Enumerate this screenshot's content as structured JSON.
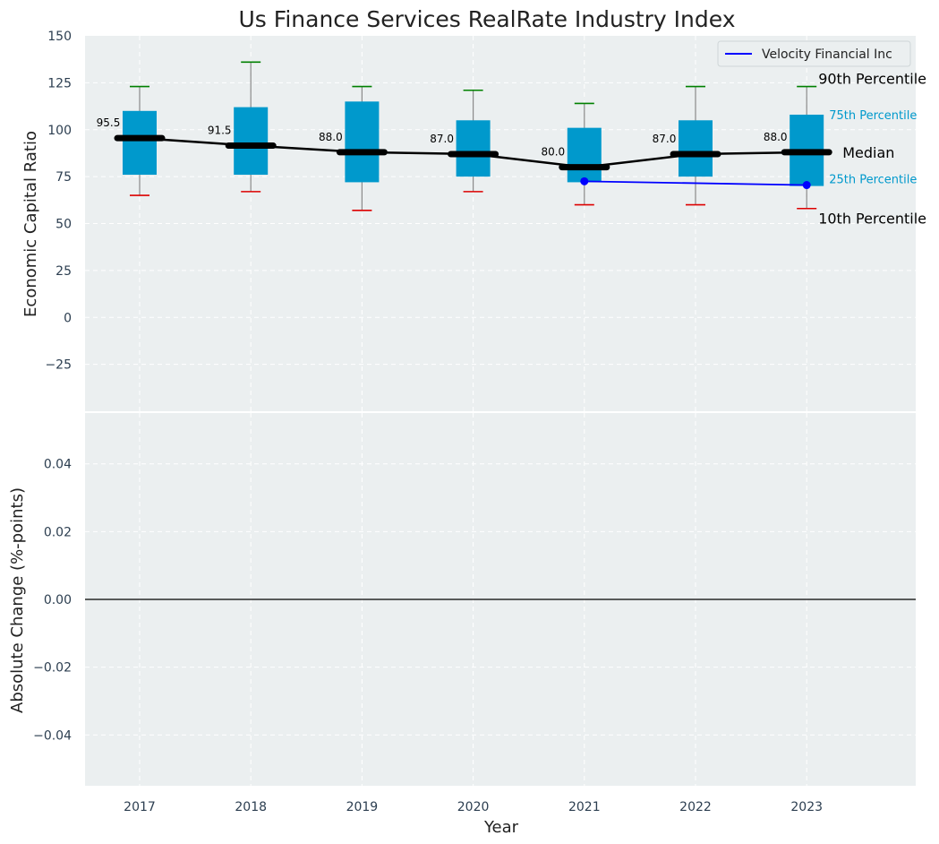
{
  "chart_data": {
    "type": "box",
    "title": "Us Finance Services RealRate Industry Index",
    "xlabel": "Year",
    "ylabel_top": "Economic Capital Ratio",
    "ylabel_bottom": "Absolute Change (%-points)",
    "categories": [
      "2017",
      "2018",
      "2019",
      "2020",
      "2021",
      "2022",
      "2023"
    ],
    "ylim_top": [
      -50,
      150
    ],
    "yticks_top": [
      -25,
      0,
      25,
      50,
      75,
      100,
      125,
      150
    ],
    "ytick_labels_top": [
      "−25",
      "0",
      "25",
      "50",
      "75",
      "100",
      "125",
      "150"
    ],
    "ylim_bottom": [
      -0.055,
      0.055
    ],
    "yticks_bottom": [
      -0.04,
      -0.02,
      0.0,
      0.02,
      0.04
    ],
    "ytick_labels_bottom": [
      "−0.04",
      "−0.02",
      "0.00",
      "0.02",
      "0.04"
    ],
    "grid": true,
    "legend_position": "top-right",
    "box_color": "#0099cc",
    "median_color": "#000000",
    "p90_color": "#008000",
    "p10_color": "#dd0000",
    "boxes": [
      {
        "year": "2017",
        "p10": 65,
        "q1": 76,
        "median": 95.5,
        "q3": 110,
        "p90": 123,
        "median_label": "95.5"
      },
      {
        "year": "2018",
        "p10": 67,
        "q1": 76,
        "median": 91.5,
        "q3": 112,
        "p90": 136,
        "median_label": "91.5"
      },
      {
        "year": "2019",
        "p10": 57,
        "q1": 72,
        "median": 88.0,
        "q3": 115,
        "p90": 123,
        "median_label": "88.0"
      },
      {
        "year": "2020",
        "p10": 67,
        "q1": 75,
        "median": 87.0,
        "q3": 105,
        "p90": 121,
        "median_label": "87.0"
      },
      {
        "year": "2021",
        "p10": 60,
        "q1": 72,
        "median": 80.0,
        "q3": 101,
        "p90": 114,
        "median_label": "80.0"
      },
      {
        "year": "2022",
        "p10": 60,
        "q1": 75,
        "median": 87.0,
        "q3": 105,
        "p90": 123,
        "median_label": "87.0"
      },
      {
        "year": "2023",
        "p10": 58,
        "q1": 70,
        "median": 88.0,
        "q3": 108,
        "p90": 123,
        "median_label": "88.0"
      }
    ],
    "series": [
      {
        "name": "Velocity Financial Inc",
        "color": "#0000ff",
        "points": [
          {
            "x": "2021",
            "y": 72.5
          },
          {
            "x": "2023",
            "y": 70.5
          }
        ]
      }
    ],
    "percentile_labels": {
      "p90": "90th Percentile",
      "q3": "75th Percentile",
      "median": "Median",
      "q1": "25th Percentile",
      "p10": "10th Percentile"
    },
    "bottom_series_values": [
      0.0,
      0.0,
      0.0,
      0.0,
      0.0,
      0.0,
      0.0
    ]
  }
}
